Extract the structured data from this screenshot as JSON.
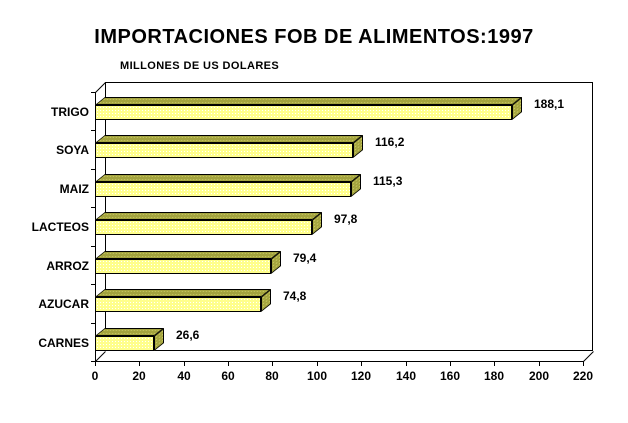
{
  "chart_data": {
    "type": "bar",
    "orientation": "horizontal",
    "style": "3d",
    "title": "IMPORTACIONES FOB DE ALIMENTOS:1997",
    "subtitle": "MILLONES DE US DOLARES",
    "xlabel": "",
    "ylabel": "",
    "categories": [
      "TRIGO",
      "SOYA",
      "MAIZ",
      "LACTEOS",
      "ARROZ",
      "AZUCAR",
      "CARNES"
    ],
    "values": [
      188.1,
      116.2,
      115.3,
      97.8,
      79.4,
      74.8,
      26.6
    ],
    "value_labels": [
      "188,1",
      "116,2",
      "115,3",
      "97,8",
      "79,4",
      "74,8",
      "26,6"
    ],
    "xlim": [
      0,
      220
    ],
    "x_ticks": [
      "0",
      "20",
      "40",
      "60",
      "80",
      "100",
      "120",
      "140",
      "160",
      "180",
      "200",
      "220"
    ],
    "grid": false,
    "legend": false,
    "colors": {
      "bar_front": "#ffff99",
      "bar_top": "#a3a33e",
      "outline": "#000000",
      "background": "#ffffff",
      "text": "#000000"
    }
  }
}
